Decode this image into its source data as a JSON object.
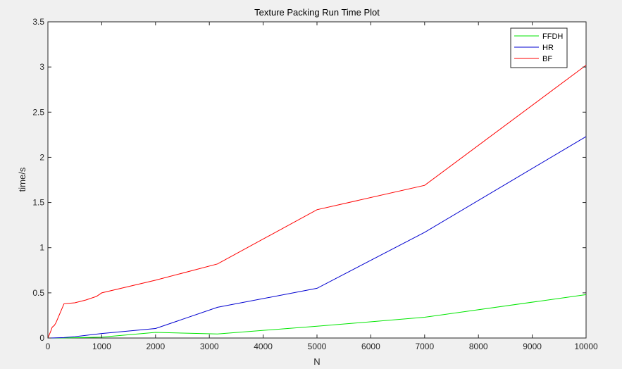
{
  "window": {
    "background": "#f0f0f0"
  },
  "chart_data": {
    "type": "line",
    "title": "Texture Packing Run Time Plot",
    "xlabel": "N",
    "ylabel": "time/s",
    "xlim": [
      0,
      10000
    ],
    "ylim": [
      0,
      3.5
    ],
    "xticks": [
      0,
      1000,
      2000,
      3000,
      4000,
      5000,
      6000,
      7000,
      8000,
      9000,
      10000
    ],
    "xtick_labels": [
      "0",
      "1000",
      "2000",
      "3000",
      "4000",
      "5000",
      "6000",
      "7000",
      "8000",
      "9000",
      "10000"
    ],
    "yticks": [
      0,
      0.5,
      1,
      1.5,
      2,
      2.5,
      3,
      3.5
    ],
    "ytick_labels": [
      "0",
      "0.5",
      "1",
      "1.5",
      "2",
      "2.5",
      "3",
      "3.5"
    ],
    "grid": false,
    "legend_position": "top-right",
    "series": [
      {
        "name": "FFDH",
        "color": "#00e600",
        "x": [
          0,
          100,
          300,
          500,
          1000,
          2000,
          3150,
          5000,
          7000,
          10000
        ],
        "y": [
          0,
          0,
          0.001,
          0.003,
          0.01,
          0.062,
          0.045,
          0.13,
          0.23,
          0.48
        ]
      },
      {
        "name": "HR",
        "color": "#0000d0",
        "x": [
          0,
          100,
          300,
          500,
          1000,
          2000,
          3150,
          5000,
          7000,
          10000
        ],
        "y": [
          0,
          0.001,
          0.005,
          0.015,
          0.05,
          0.105,
          0.34,
          0.55,
          1.17,
          2.23
        ]
      },
      {
        "name": "BF",
        "color": "#ff0000",
        "x": [
          0,
          50,
          80,
          120,
          150,
          200,
          300,
          400,
          500,
          700,
          900,
          1000,
          2000,
          3150,
          5000,
          7000,
          10000
        ],
        "y": [
          0,
          0.07,
          0.12,
          0.14,
          0.17,
          0.24,
          0.38,
          0.385,
          0.39,
          0.42,
          0.46,
          0.5,
          0.64,
          0.82,
          1.42,
          1.69,
          3.02
        ]
      }
    ]
  }
}
